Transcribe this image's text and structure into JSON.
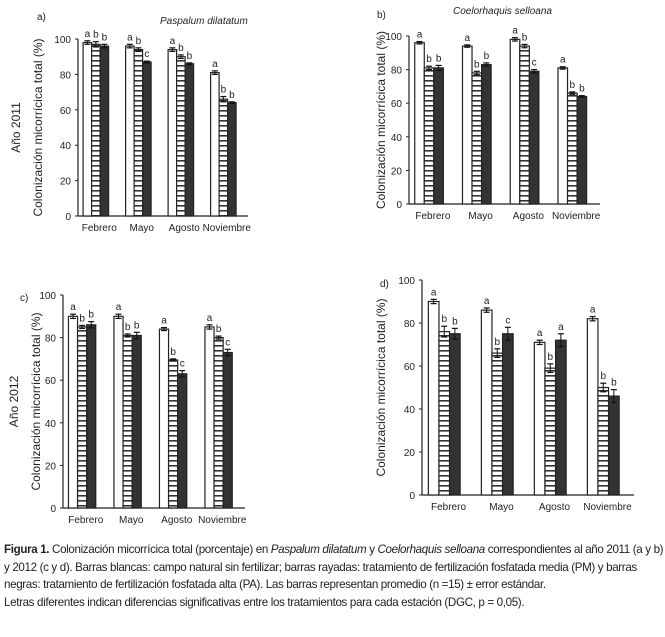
{
  "chart_data": [
    {
      "type": "bar",
      "panel": "a)",
      "title": "Paspalum dilatatum",
      "row_label": "Año 2011",
      "ylabel": "Colonización micorrícica total (%)",
      "ylim": [
        0,
        100
      ],
      "yticks": [
        0,
        20,
        40,
        60,
        80,
        100
      ],
      "categories": [
        "Febrero",
        "Mayo",
        "Agosto",
        "Noviembre"
      ],
      "series": [
        {
          "name": "campo natural",
          "pattern": "white",
          "values": [
            98,
            96,
            94,
            81
          ],
          "errors": [
            1,
            1,
            1,
            1
          ]
        },
        {
          "name": "PM",
          "pattern": "striped",
          "values": [
            97,
            94,
            90,
            66
          ],
          "errors": [
            1.5,
            1,
            1,
            1.5
          ]
        },
        {
          "name": "PA",
          "pattern": "black",
          "values": [
            96,
            87,
            86,
            64
          ],
          "errors": [
            1,
            0.5,
            0.5,
            0.5
          ]
        }
      ],
      "letters": [
        [
          "a",
          "b",
          "b"
        ],
        [
          "a",
          "b",
          "c"
        ],
        [
          "a",
          "b",
          "b"
        ],
        [
          "a",
          "b",
          "b"
        ]
      ]
    },
    {
      "type": "bar",
      "panel": "b)",
      "title": "Coelorhaquis selloana",
      "row_label": "",
      "ylabel": "Colonización micorrícica total (%)",
      "ylim": [
        0,
        100
      ],
      "yticks": [
        0,
        20,
        40,
        60,
        80,
        100
      ],
      "categories": [
        "Febrero",
        "Mayo",
        "Agosto",
        "Noviembre"
      ],
      "series": [
        {
          "name": "campo natural",
          "pattern": "white",
          "values": [
            96,
            94,
            98,
            81
          ],
          "errors": [
            0.7,
            0.7,
            1,
            0.7
          ]
        },
        {
          "name": "PM",
          "pattern": "striped",
          "values": [
            81,
            78,
            94,
            66
          ],
          "errors": [
            1,
            1,
            1,
            0.7
          ]
        },
        {
          "name": "PA",
          "pattern": "black",
          "values": [
            81,
            83,
            79,
            64
          ],
          "errors": [
            1.5,
            1,
            1,
            0.5
          ]
        }
      ],
      "letters": [
        [
          "a",
          "b",
          "b"
        ],
        [
          "a",
          "b",
          "b"
        ],
        [
          "a",
          "b",
          "c"
        ],
        [
          "a",
          "b",
          "b"
        ]
      ]
    },
    {
      "type": "bar",
      "panel": "c)",
      "title": "",
      "row_label": "Año 2012",
      "ylabel": "Colonización micorrícica total (%)",
      "ylim": [
        0,
        100
      ],
      "yticks": [
        0,
        20,
        40,
        60,
        80,
        100
      ],
      "categories": [
        "Febrero",
        "Mayo",
        "Agosto",
        "Noviembre"
      ],
      "series": [
        {
          "name": "campo natural",
          "pattern": "white",
          "values": [
            90,
            90,
            84,
            85
          ],
          "errors": [
            1,
            1,
            0.7,
            1
          ]
        },
        {
          "name": "PM",
          "pattern": "striped",
          "values": [
            85,
            81,
            69.5,
            80
          ],
          "errors": [
            0.7,
            0.7,
            0.5,
            0.7
          ]
        },
        {
          "name": "PA",
          "pattern": "black",
          "values": [
            86,
            81,
            63,
            73
          ],
          "errors": [
            1.5,
            1.5,
            1.5,
            1.5
          ]
        }
      ],
      "letters": [
        [
          "a",
          "b",
          "b"
        ],
        [
          "a",
          "b",
          "b"
        ],
        [
          "a",
          "b",
          "c"
        ],
        [
          "a",
          "b",
          "c"
        ]
      ]
    },
    {
      "type": "bar",
      "panel": "d)",
      "title": "",
      "row_label": "",
      "ylabel": "Colonización micorrícica total (%)",
      "ylim": [
        0,
        100
      ],
      "yticks": [
        0,
        20,
        40,
        60,
        80,
        100
      ],
      "categories": [
        "Febrero",
        "Mayo",
        "Agosto",
        "Noviembre"
      ],
      "series": [
        {
          "name": "campo natural",
          "pattern": "white",
          "values": [
            90,
            86,
            71,
            82
          ],
          "errors": [
            1,
            1,
            1,
            1
          ]
        },
        {
          "name": "PM",
          "pattern": "striped",
          "values": [
            76,
            66,
            59,
            50
          ],
          "errors": [
            2.5,
            2,
            2,
            2
          ]
        },
        {
          "name": "PA",
          "pattern": "black",
          "values": [
            75,
            75,
            72,
            46
          ],
          "errors": [
            2.5,
            3,
            3,
            3
          ]
        }
      ],
      "letters": [
        [
          "a",
          "b",
          "b"
        ],
        [
          "a",
          "b",
          "c"
        ],
        [
          "a",
          "b",
          "a"
        ],
        [
          "a",
          "b",
          "b"
        ]
      ]
    }
  ],
  "caption": {
    "label": "Figura 1.",
    "p1": " Colonización micorrícica total (porcentaje) en ",
    "sp1": "Paspalum dilatatum",
    "p2": " y ",
    "sp2": "Coelorhaquis selloana",
    "p3": " correspondientes al año 2011 (a y b) y 2012 (c y d). Barras blancas: campo natural sin fertilizar; barras rayadas: tratamiento de fertilización fosfatada media (PM) y barras negras: tratamiento de fertilización fosfatada alta (PA). Las barras representan promedio (n =15) ± error estándar.",
    "line2": "Letras diferentes indican diferencias significativas entre los tratamientos para cada estación (DGC, p = 0,05)."
  }
}
